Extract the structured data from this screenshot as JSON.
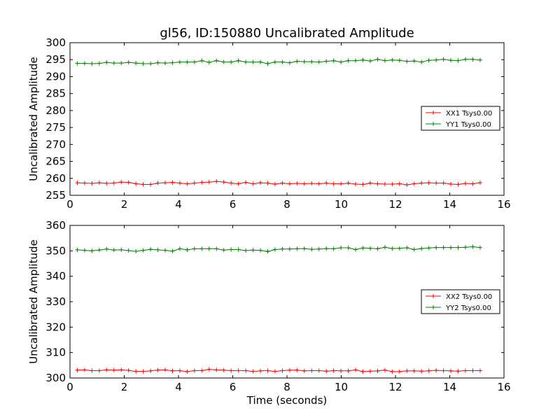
{
  "title": "gl56, ID:150880 Uncalibrated Amplitude",
  "colors": {
    "red": "#ff0000",
    "green": "#008000",
    "axis": "#000000",
    "background": "#ffffff"
  },
  "chart_data": [
    {
      "type": "line",
      "title": "gl56, ID:150880 Uncalibrated Amplitude",
      "xlabel": "",
      "ylabel": "Uncalibrated Amplitude",
      "xlim": [
        0,
        16
      ],
      "ylim": [
        255,
        300
      ],
      "xticks": [
        0,
        2,
        4,
        6,
        8,
        10,
        12,
        14,
        16
      ],
      "yticks": [
        255,
        260,
        265,
        270,
        275,
        280,
        285,
        290,
        295,
        300
      ],
      "legend_position": "center-right",
      "x": [
        0.27,
        0.54,
        0.81,
        1.08,
        1.35,
        1.62,
        1.89,
        2.16,
        2.43,
        2.7,
        2.97,
        3.24,
        3.51,
        3.78,
        4.05,
        4.32,
        4.59,
        4.86,
        5.13,
        5.4,
        5.67,
        5.94,
        6.21,
        6.48,
        6.75,
        7.02,
        7.29,
        7.56,
        7.83,
        8.1,
        8.37,
        8.64,
        8.91,
        9.18,
        9.45,
        9.72,
        9.99,
        10.26,
        10.53,
        10.8,
        11.07,
        11.34,
        11.61,
        11.88,
        12.15,
        12.42,
        12.69,
        12.96,
        13.23,
        13.5,
        13.77,
        14.04,
        14.31,
        14.58,
        14.85,
        15.12
      ],
      "series": [
        {
          "name": "XX1 Tsys0.00",
          "color": "#ff0000",
          "values": [
            258.7,
            258.6,
            258.5,
            258.7,
            258.5,
            258.6,
            258.9,
            258.8,
            258.4,
            258.2,
            258.2,
            258.6,
            258.7,
            258.8,
            258.6,
            258.4,
            258.6,
            258.8,
            258.9,
            259.1,
            258.9,
            258.6,
            258.4,
            258.8,
            258.4,
            258.7,
            258.6,
            258.3,
            258.6,
            258.4,
            258.5,
            258.4,
            258.5,
            258.4,
            258.6,
            258.4,
            258.4,
            258.6,
            258.3,
            258.2,
            258.6,
            258.4,
            258.3,
            258.3,
            258.4,
            258.1,
            258.4,
            258.6,
            258.7,
            258.6,
            258.6,
            258.3,
            258.2,
            258.5,
            258.4,
            258.7
          ]
        },
        {
          "name": "YY1 Tsys0.00",
          "color": "#008000",
          "values": [
            293.9,
            293.9,
            293.8,
            293.9,
            294.2,
            294.0,
            294.0,
            294.2,
            294.0,
            293.8,
            293.8,
            294.1,
            294.0,
            294.1,
            294.3,
            294.3,
            294.3,
            294.7,
            294.2,
            294.7,
            294.3,
            294.3,
            294.7,
            294.3,
            294.3,
            294.3,
            293.8,
            294.3,
            294.3,
            294.1,
            294.5,
            294.4,
            294.4,
            294.3,
            294.5,
            294.7,
            294.3,
            294.7,
            294.7,
            294.9,
            294.6,
            295.1,
            294.7,
            294.9,
            294.8,
            294.5,
            294.6,
            294.3,
            294.8,
            294.9,
            295.1,
            294.8,
            294.7,
            295.1,
            295.1,
            294.9
          ]
        }
      ]
    },
    {
      "type": "line",
      "title": "",
      "xlabel": "Time (seconds)",
      "ylabel": "Uncalibrated Amplitude",
      "xlim": [
        0,
        16
      ],
      "ylim": [
        300,
        360
      ],
      "xticks": [
        0,
        2,
        4,
        6,
        8,
        10,
        12,
        14,
        16
      ],
      "yticks": [
        300,
        310,
        320,
        330,
        340,
        350,
        360
      ],
      "legend_position": "center-right",
      "x": [
        0.27,
        0.54,
        0.81,
        1.08,
        1.35,
        1.62,
        1.89,
        2.16,
        2.43,
        2.7,
        2.97,
        3.24,
        3.51,
        3.78,
        4.05,
        4.32,
        4.59,
        4.86,
        5.13,
        5.4,
        5.67,
        5.94,
        6.21,
        6.48,
        6.75,
        7.02,
        7.29,
        7.56,
        7.83,
        8.1,
        8.37,
        8.64,
        8.91,
        9.18,
        9.45,
        9.72,
        9.99,
        10.26,
        10.53,
        10.8,
        11.07,
        11.34,
        11.61,
        11.88,
        12.15,
        12.42,
        12.69,
        12.96,
        13.23,
        13.5,
        13.77,
        14.04,
        14.31,
        14.58,
        14.85,
        15.12
      ],
      "series": [
        {
          "name": "XX2 Tsys0.00",
          "color": "#ff0000",
          "values": [
            303.1,
            303.2,
            302.9,
            302.9,
            303.2,
            303.1,
            303.2,
            303.0,
            302.6,
            302.6,
            302.8,
            303.1,
            303.2,
            302.8,
            302.9,
            302.5,
            302.9,
            302.9,
            303.4,
            303.2,
            303.1,
            302.9,
            302.9,
            302.9,
            302.6,
            302.8,
            302.9,
            302.6,
            302.9,
            303.1,
            303.1,
            302.8,
            302.9,
            302.9,
            302.7,
            302.9,
            302.8,
            302.8,
            303.2,
            302.5,
            302.7,
            302.8,
            303.1,
            302.5,
            302.5,
            302.8,
            302.8,
            302.7,
            302.8,
            303.0,
            302.9,
            302.8,
            302.7,
            302.9,
            302.9,
            302.9
          ]
        },
        {
          "name": "YY2 Tsys0.00",
          "color": "#008000",
          "values": [
            350.4,
            350.2,
            350.0,
            350.3,
            350.7,
            350.3,
            350.4,
            350.1,
            349.8,
            350.2,
            350.6,
            350.4,
            350.2,
            349.9,
            350.8,
            350.4,
            350.8,
            350.8,
            350.8,
            350.8,
            350.3,
            350.5,
            350.5,
            350.1,
            350.3,
            350.2,
            349.7,
            350.5,
            350.7,
            350.7,
            350.8,
            350.9,
            350.6,
            350.7,
            350.9,
            350.8,
            351.2,
            351.2,
            350.5,
            351.1,
            351.0,
            350.8,
            351.4,
            350.9,
            351.0,
            351.2,
            350.5,
            350.9,
            351.1,
            351.3,
            351.3,
            351.3,
            351.3,
            351.4,
            351.6,
            351.3
          ]
        }
      ]
    }
  ]
}
